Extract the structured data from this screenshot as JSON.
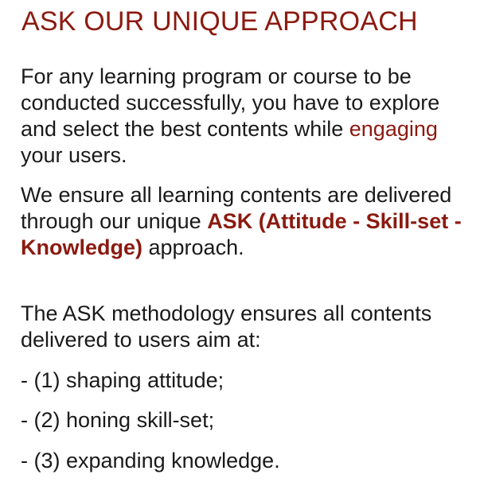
{
  "heading": {
    "title": "ASK OUR UNIQUE APPROACH"
  },
  "paragraph1": {
    "text_before": "For any learning program or course to be conducted successfully, you have to explore and select the best contents while ",
    "highlight": "engaging",
    "text_after": " your users."
  },
  "paragraph2": {
    "text_before": "We ensure all learning contents are delivered through our unique ",
    "highlight_bold": "ASK (Attitude - Skill-set - Knowledge)",
    "text_after": " approach."
  },
  "paragraph3": {
    "text": "The ASK methodology ensures all contents delivered to users aim at:"
  },
  "bullets": [
    "- (1) shaping attitude;",
    "- (2) honing skill-set;",
    "- (3) expanding knowledge."
  ],
  "colors": {
    "accent": "#8b1a10",
    "body_text": "#1a1a1a",
    "background": "#ffffff"
  }
}
